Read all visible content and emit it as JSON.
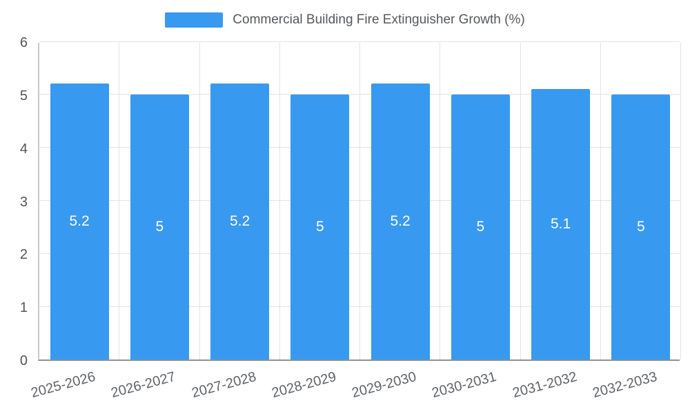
{
  "chart_data": {
    "type": "bar",
    "title": "Commercial Building Fire Extinguisher Growth (%)",
    "categories": [
      "2025-2026",
      "2026-2027",
      "2027-2028",
      "2028-2029",
      "2029-2030",
      "2030-2031",
      "2031-2032",
      "2032-2033"
    ],
    "values": [
      5.2,
      5,
      5.2,
      5,
      5.2,
      5,
      5.1,
      5
    ],
    "value_labels": [
      "5.2",
      "5",
      "5.2",
      "5",
      "5.2",
      "5",
      "5.1",
      "5"
    ],
    "xlabel": "",
    "ylabel": "",
    "ylim": [
      0,
      6
    ],
    "yticks": [
      0,
      1,
      2,
      3,
      4,
      5,
      6
    ],
    "grid": true,
    "legend_position": "top",
    "bar_color": "#3899f0",
    "bar_value_label_color": "#ffffff",
    "axis_text_color": "#555555"
  }
}
